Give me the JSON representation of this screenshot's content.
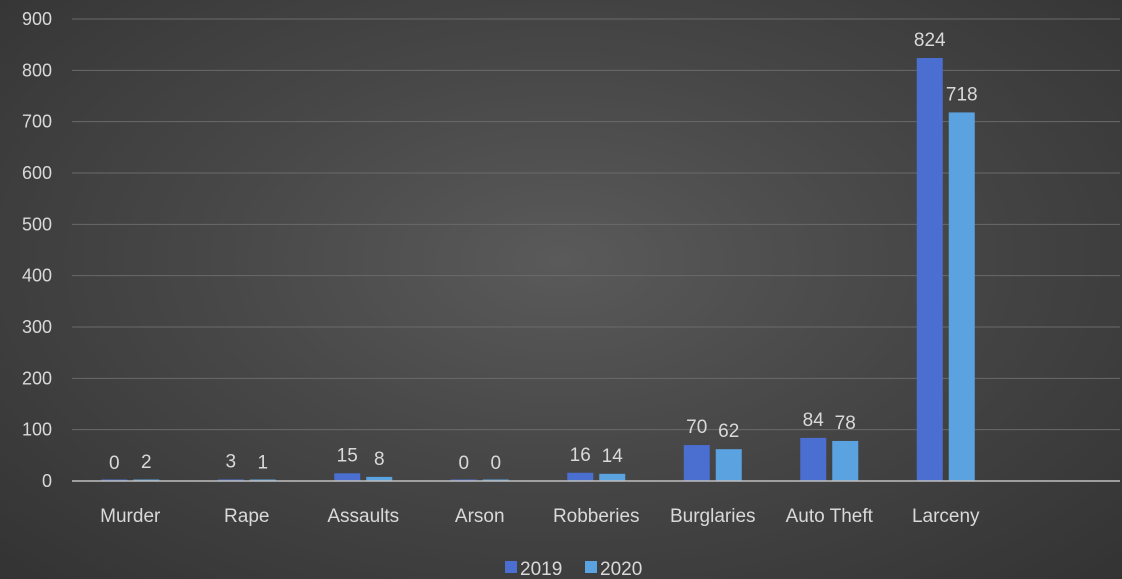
{
  "chart_data": {
    "type": "bar",
    "title": "",
    "xlabel": "",
    "ylabel": "",
    "ylim": [
      0,
      900
    ],
    "yticks": [
      0,
      100,
      200,
      300,
      400,
      500,
      600,
      700,
      800,
      900
    ],
    "grid": true,
    "legend_position": "bottom",
    "categories": [
      "Murder",
      "Rape",
      "Assaults",
      "Arson",
      "Robberies",
      "Burglaries",
      "Auto Theft",
      "Larceny"
    ],
    "series": [
      {
        "name": "2019",
        "color": "#4a6fd1",
        "values": [
          0,
          3,
          15,
          0,
          16,
          70,
          84,
          824
        ]
      },
      {
        "name": "2020",
        "color": "#5ba3e0",
        "values": [
          2,
          1,
          8,
          0,
          14,
          62,
          78,
          718
        ]
      }
    ]
  }
}
